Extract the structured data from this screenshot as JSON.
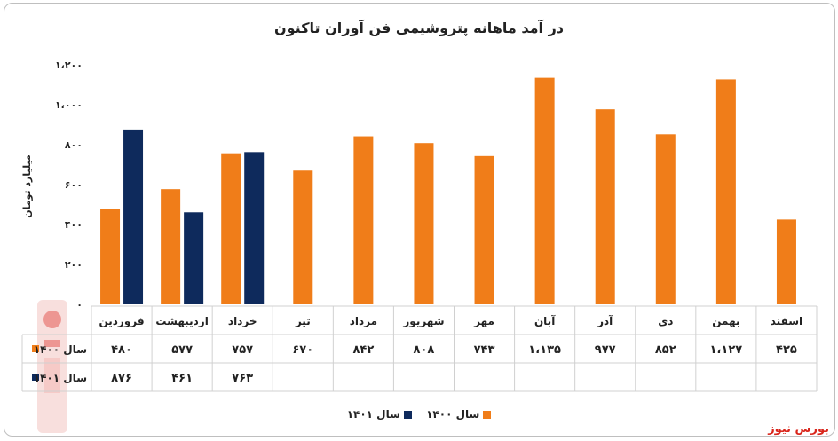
{
  "chart_data": {
    "type": "bar",
    "title": "در آمد ماهانه پتروشیمی فن آوران تاکنون",
    "ylabel": "میلیارد تومان",
    "ylim": [
      0,
      1200
    ],
    "yticks": [
      "۰",
      "۲۰۰",
      "۴۰۰",
      "۶۰۰",
      "۸۰۰",
      "۱،۰۰۰",
      "۱،۲۰۰"
    ],
    "ytick_values": [
      0,
      200,
      400,
      600,
      800,
      1000,
      1200
    ],
    "categories": [
      "فروردین",
      "اردیبهشت",
      "خرداد",
      "تیر",
      "مرداد",
      "شهریور",
      "مهر",
      "آبان",
      "آذر",
      "دی",
      "بهمن",
      "اسفند"
    ],
    "series": [
      {
        "name": "سال ۱۴۰۰",
        "color": "#f07d19",
        "values": [
          480,
          577,
          757,
          670,
          842,
          808,
          743,
          1135,
          977,
          852,
          1127,
          425
        ],
        "labels": [
          "۴۸۰",
          "۵۷۷",
          "۷۵۷",
          "۶۷۰",
          "۸۴۲",
          "۸۰۸",
          "۷۴۳",
          "۱،۱۳۵",
          "۹۷۷",
          "۸۵۲",
          "۱،۱۲۷",
          "۴۲۵"
        ]
      },
      {
        "name": "سال ۱۴۰۱",
        "color": "#0e2a5c",
        "values": [
          876,
          461,
          763,
          null,
          null,
          null,
          null,
          null,
          null,
          null,
          null,
          null
        ],
        "labels": [
          "۸۷۶",
          "۴۶۱",
          "۷۶۳",
          "",
          "",
          "",
          "",
          "",
          "",
          "",
          "",
          ""
        ]
      }
    ],
    "grid": false,
    "legend": "bottom"
  },
  "legend": {
    "s1400": "سال ۱۴۰۰",
    "s1401": "سال ۱۴۰۱"
  },
  "brand": "بورس نیوز"
}
